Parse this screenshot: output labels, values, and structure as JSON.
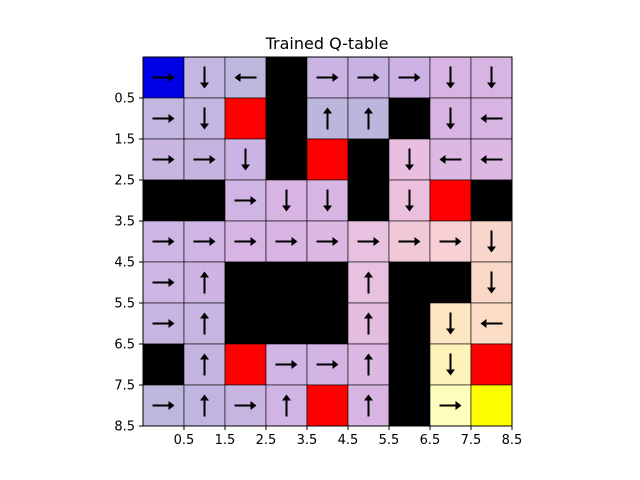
{
  "chart_data": {
    "type": "heatmap",
    "title": "Trained Q-table",
    "xlabel": "",
    "ylabel": "",
    "x_ticks": [
      "0.5",
      "1.5",
      "2.5",
      "3.5",
      "4.5",
      "5.5",
      "6.5",
      "7.5",
      "8.5"
    ],
    "y_ticks": [
      "0.5",
      "1.5",
      "2.5",
      "3.5",
      "4.5",
      "5.5",
      "6.5",
      "7.5",
      "8.5"
    ],
    "rows": 9,
    "cols": 9,
    "cells": [
      [
        "start",
        "q",
        "q",
        "wall",
        "q",
        "q",
        "q",
        "q",
        "q"
      ],
      [
        "q",
        "q",
        "hazard",
        "wall",
        "q",
        "q",
        "wall",
        "q",
        "q"
      ],
      [
        "q",
        "q",
        "q",
        "wall",
        "hazard",
        "wall",
        "q",
        "q",
        "q"
      ],
      [
        "wall",
        "wall",
        "q",
        "q",
        "q",
        "wall",
        "q",
        "hazard",
        "wall"
      ],
      [
        "q",
        "q",
        "q",
        "q",
        "q",
        "q",
        "q",
        "q",
        "q"
      ],
      [
        "q",
        "q",
        "wall",
        "wall",
        "wall",
        "q",
        "wall",
        "wall",
        "q"
      ],
      [
        "q",
        "q",
        "wall",
        "wall",
        "wall",
        "q",
        "wall",
        "q",
        "q"
      ],
      [
        "wall",
        "q",
        "hazard",
        "q",
        "q",
        "q",
        "wall",
        "q",
        "hazard"
      ],
      [
        "q",
        "q",
        "q",
        "q",
        "hazard",
        "q",
        "wall",
        "q",
        "goal"
      ]
    ],
    "cell_colors": [
      [
        "#0000e6",
        "#c3b6e0",
        "#bdb6dd",
        "#000000",
        "#c9b4e3",
        "#c8b2e3",
        "#cdb2e3",
        "#d8b4e3",
        "#d8b4e3"
      ],
      [
        "#c3b6e0",
        "#c3b6e0",
        "#ff0000",
        "#000000",
        "#bcb6dd",
        "#bcb6dd",
        "#000000",
        "#d8b4e3",
        "#d8b4e3"
      ],
      [
        "#c8b6e0",
        "#c6b4e0",
        "#cbb4e3",
        "#000000",
        "#ff0000",
        "#000000",
        "#e8bfe0",
        "#dcb8e3",
        "#dcb8e3"
      ],
      [
        "#000000",
        "#000000",
        "#d0b4e3",
        "#d8b4e3",
        "#d8b4e3",
        "#000000",
        "#ecc0dc",
        "#ff0000",
        "#000000"
      ],
      [
        "#cdb6e3",
        "#d0b4e3",
        "#d8b4e3",
        "#d8b4e3",
        "#dcb8e3",
        "#e8c0e0",
        "#f0c8d8",
        "#f6d0d4",
        "#f8d6cc"
      ],
      [
        "#cdb6e3",
        "#cdb4e3",
        "#000000",
        "#000000",
        "#000000",
        "#e8c0e0",
        "#000000",
        "#000000",
        "#fad8c8"
      ],
      [
        "#c8b4e0",
        "#c8b4e0",
        "#000000",
        "#000000",
        "#000000",
        "#e4bce0",
        "#000000",
        "#fde6c2",
        "#fbdcc4"
      ],
      [
        "#000000",
        "#c3b4e0",
        "#ff0000",
        "#d0b4e3",
        "#d4b4e3",
        "#dcb8e3",
        "#000000",
        "#fef2bb",
        "#ff0000"
      ],
      [
        "#bdb6dd",
        "#c0b4e0",
        "#c8b4e0",
        "#d0b4e3",
        "#ff0000",
        "#d8b4e3",
        "#000000",
        "#fefdbb",
        "#ffff00"
      ]
    ],
    "arrows": [
      [
        "right",
        "down",
        "left",
        "",
        "right",
        "right",
        "right",
        "down",
        "down"
      ],
      [
        "right",
        "down",
        "",
        "",
        "up",
        "up",
        "",
        "down",
        "left"
      ],
      [
        "right",
        "right",
        "down",
        "",
        "",
        "",
        "down",
        "left",
        "left"
      ],
      [
        "",
        "",
        "right",
        "down",
        "down",
        "",
        "down",
        "",
        ""
      ],
      [
        "right",
        "right",
        "right",
        "right",
        "right",
        "right",
        "right",
        "right",
        "down"
      ],
      [
        "right",
        "up",
        "",
        "",
        "",
        "up",
        "",
        "",
        "down"
      ],
      [
        "right",
        "up",
        "",
        "",
        "",
        "up",
        "",
        "down",
        "left"
      ],
      [
        "",
        "up",
        "",
        "right",
        "right",
        "up",
        "",
        "down",
        ""
      ],
      [
        "right",
        "up",
        "right",
        "up",
        "",
        "up",
        "",
        "right",
        ""
      ]
    ],
    "grid": true,
    "legend": "none"
  }
}
